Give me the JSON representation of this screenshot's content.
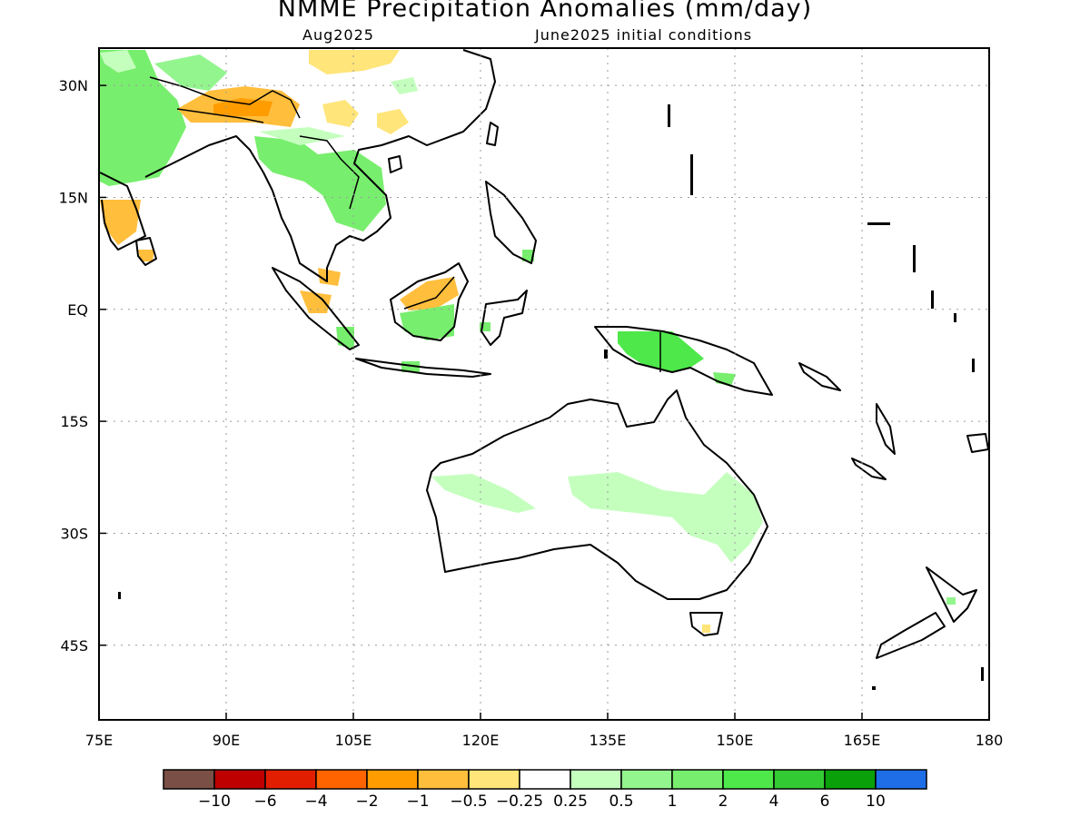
{
  "title": "NMME Precipitation Anomalies (mm/day)",
  "subtitle_left": "Aug2025",
  "subtitle_right": "June2025 initial conditions",
  "map": {
    "lon_range": [
      75,
      180
    ],
    "lat_range": [
      -55,
      35
    ],
    "lon_ticks": [
      "75E",
      "90E",
      "105E",
      "120E",
      "135E",
      "150E",
      "165E",
      "180"
    ],
    "lat_ticks": [
      "30N",
      "15N",
      "EQ",
      "15S",
      "30S",
      "45S"
    ]
  },
  "colorbar": {
    "colors": [
      "#7a4f45",
      "#be0000",
      "#e21e00",
      "#ff6400",
      "#ff9c00",
      "#ffbe3c",
      "#ffe57a",
      "#ffffff",
      "#c4ffbe",
      "#93f58e",
      "#78ee6e",
      "#4ee84a",
      "#33cb33",
      "#0aa00a",
      "#1e6ee8"
    ],
    "labels": [
      "−10",
      "−6",
      "−4",
      "−2",
      "−1",
      "−0.5",
      "−0.25",
      "0.25",
      "0.5",
      "1",
      "2",
      "4",
      "6",
      "10"
    ]
  }
}
